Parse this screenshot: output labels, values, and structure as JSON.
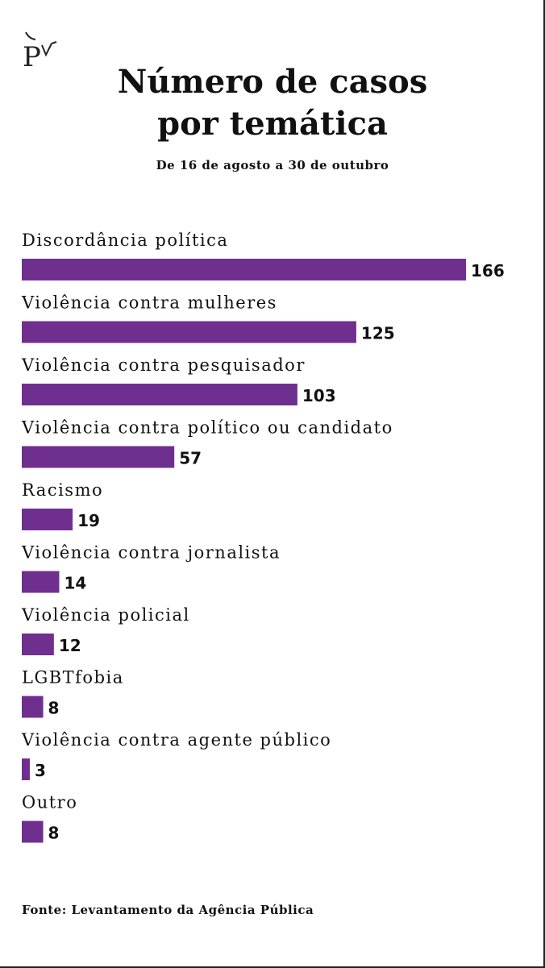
{
  "brand": {
    "logo_icon": "publica-p-logo-icon"
  },
  "title_lines": [
    "Número de casos",
    "por temática"
  ],
  "subtitle": "De 16 de agosto a 30 de outubro",
  "source": "Fonte: Levantamento da Agência Pública",
  "colors": {
    "bar": "#6f2f8f",
    "text": "#111111"
  },
  "chart_data": {
    "type": "bar",
    "orientation": "horizontal",
    "title": "Número de casos por temática",
    "subtitle": "De 16 de agosto a 30 de outubro",
    "categories": [
      "Discordância política",
      "Violência contra mulheres",
      "Violência contra pesquisador",
      "Violência contra político ou candidato",
      "Racismo",
      "Violência contra jornalista",
      "Violência policial",
      "LGBTfobia",
      "Violência contra agente público",
      "Outro"
    ],
    "values": [
      166,
      125,
      103,
      57,
      19,
      14,
      12,
      8,
      3,
      8
    ],
    "xlim": [
      0,
      166
    ],
    "grid": false,
    "legend": "none",
    "data_labels": true
  }
}
